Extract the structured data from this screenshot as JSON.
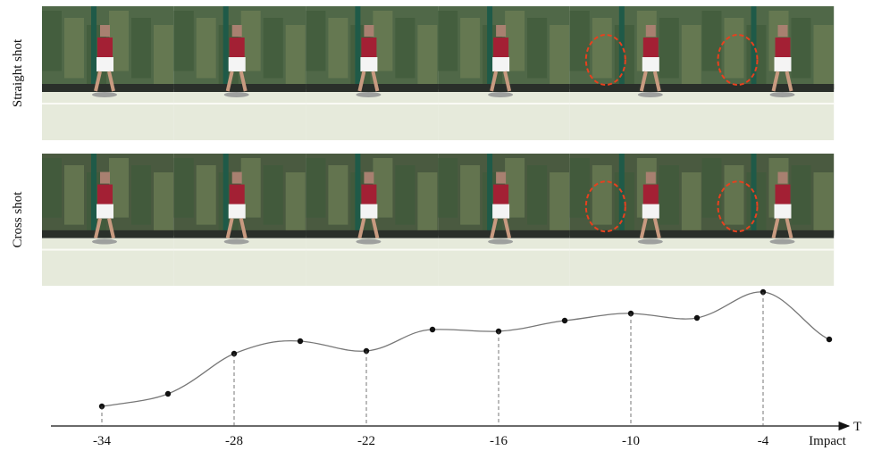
{
  "labels": {
    "straight": "Straight shot",
    "cross": "Cross shot"
  },
  "axis": {
    "ticks": [
      -34,
      -28,
      -22,
      -16,
      -10,
      -4
    ],
    "end_label": "T",
    "impact_label": "Impact"
  }
}
